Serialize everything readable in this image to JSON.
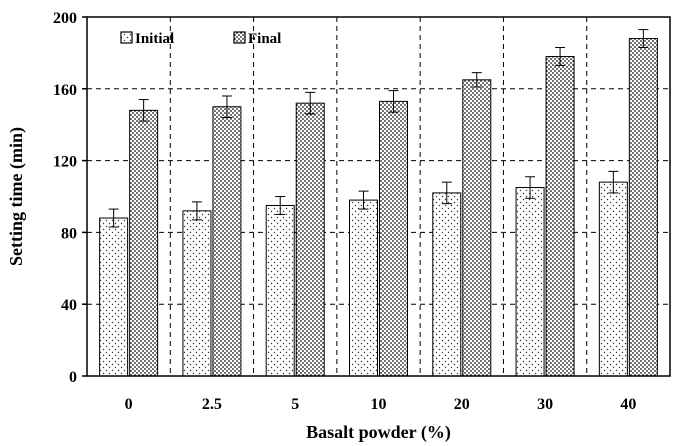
{
  "chart_data": {
    "type": "bar",
    "title": "",
    "xlabel": "Basalt powder (%)",
    "ylabel": "Setting time (min)",
    "categories": [
      "0",
      "2.5",
      "5",
      "10",
      "20",
      "30",
      "40"
    ],
    "series": [
      {
        "name": "Initial",
        "values": [
          88,
          92,
          95,
          98,
          102,
          105,
          108
        ],
        "errors": [
          5,
          5,
          5,
          5,
          6,
          6,
          6
        ]
      },
      {
        "name": "Final",
        "values": [
          148,
          150,
          152,
          153,
          165,
          178,
          188
        ],
        "errors": [
          6,
          6,
          6,
          6,
          4,
          5,
          5
        ]
      }
    ],
    "ylim": [
      0,
      200
    ],
    "yticks": [
      0,
      40,
      80,
      120,
      160,
      200
    ],
    "grid": true,
    "legend_position": "top-left",
    "colors": {
      "bar_outline": "#000000",
      "background": "#ffffff",
      "grid": "#000000"
    }
  }
}
